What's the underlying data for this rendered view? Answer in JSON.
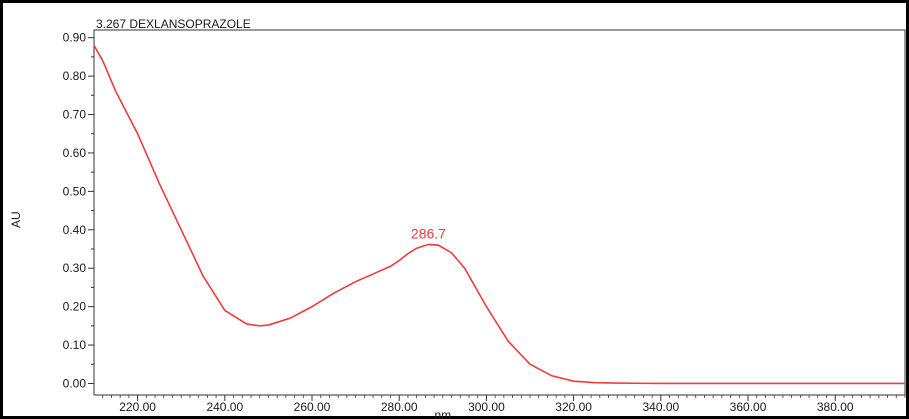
{
  "chart_data": {
    "type": "line",
    "title": "3.267 DEXLANSOPRAZOLE",
    "xlabel": "nm",
    "ylabel": "AU",
    "xlim": [
      210,
      396
    ],
    "ylim": [
      -0.03,
      0.92
    ],
    "x_ticks": [
      220,
      240,
      260,
      280,
      300,
      320,
      340,
      360,
      380
    ],
    "x_tick_labels": [
      "220.00",
      "240.00",
      "260.00",
      "280.00",
      "300.00",
      "320.00",
      "340.00",
      "360.00",
      "380.00"
    ],
    "y_ticks": [
      0.0,
      0.1,
      0.2,
      0.3,
      0.4,
      0.5,
      0.6,
      0.7,
      0.8,
      0.9
    ],
    "y_tick_labels": [
      "0.00",
      "0.10",
      "0.20",
      "0.30",
      "0.40",
      "0.50",
      "0.60",
      "0.70",
      "0.80",
      "0.90"
    ],
    "grid": false,
    "line_color": "#ee3b3b",
    "series": [
      {
        "x": [
          210,
          212,
          215,
          220,
          225,
          230,
          235,
          240,
          245,
          248,
          250,
          255,
          260,
          265,
          270,
          275,
          278,
          280,
          282,
          284,
          286.7,
          289,
          292,
          295,
          298,
          300,
          305,
          310,
          315,
          320,
          325,
          330,
          340,
          350,
          360,
          370,
          380,
          390,
          396
        ],
        "y": [
          0.88,
          0.84,
          0.76,
          0.65,
          0.52,
          0.4,
          0.28,
          0.19,
          0.155,
          0.15,
          0.152,
          0.17,
          0.2,
          0.235,
          0.265,
          0.29,
          0.305,
          0.32,
          0.338,
          0.352,
          0.362,
          0.36,
          0.34,
          0.3,
          0.24,
          0.2,
          0.11,
          0.05,
          0.02,
          0.006,
          0.002,
          0.001,
          0.0,
          0.0,
          0.0,
          0.0,
          0.0,
          0.0,
          0.0
        ]
      }
    ],
    "annotations": [
      {
        "text": "286.7",
        "x": 286.7,
        "y": 0.362
      }
    ]
  }
}
